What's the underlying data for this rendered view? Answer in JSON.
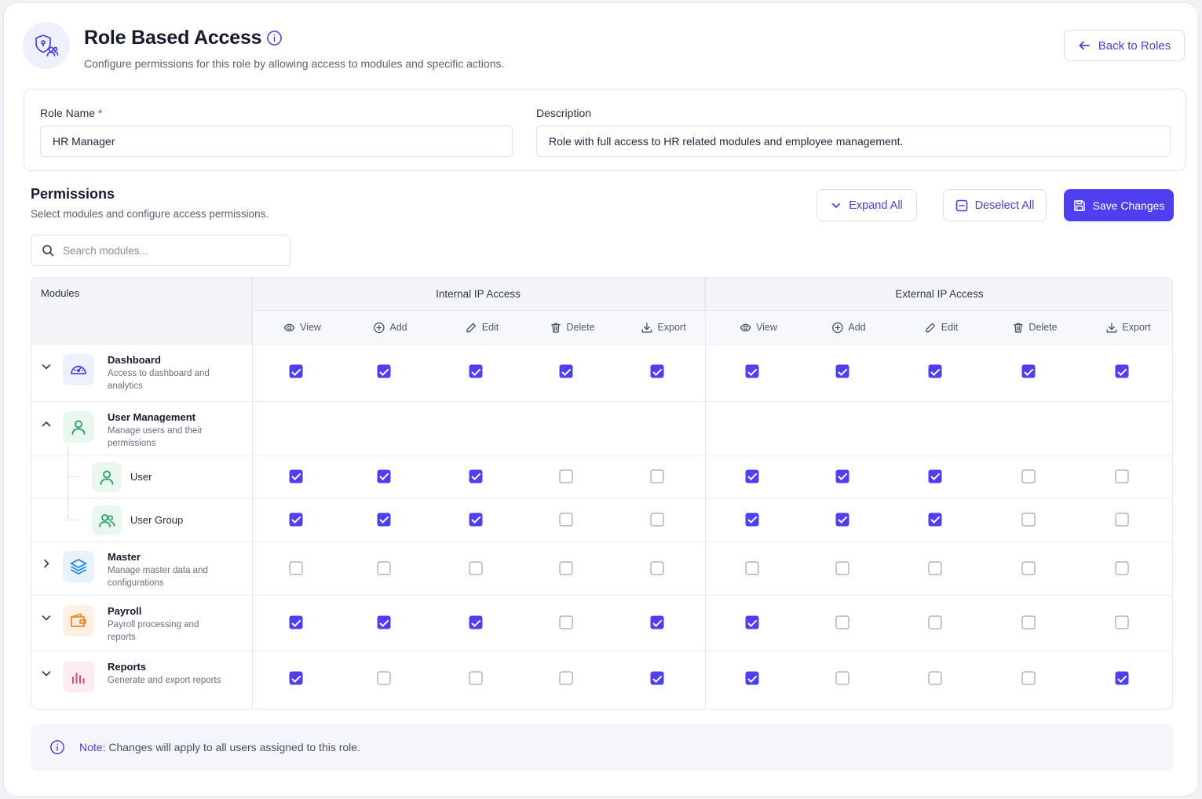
{
  "header": {
    "title": "Role Based Access",
    "subtitle": "Configure permissions for this role by allowing access to modules and specific actions.",
    "back_label": "Back to Roles"
  },
  "form": {
    "role_name_label": "Role Name",
    "role_name_required": "*",
    "role_name_value": "HR Manager",
    "description_label": "Description",
    "description_value": "Role with full access to HR related modules and employee management."
  },
  "permissions": {
    "title": "Permissions",
    "subtitle": "Select modules and configure access permissions.",
    "expand_all_label": "Expand All",
    "deselect_all_label": "Deselect All",
    "save_label": "Save Changes",
    "search_placeholder": "Search modules..."
  },
  "table": {
    "modules_header": "Modules",
    "groups": [
      "Internal IP Access",
      "External IP Access"
    ],
    "actions": [
      "View",
      "Add",
      "Edit",
      "Delete",
      "Export"
    ],
    "action_icons": [
      "eye-icon",
      "plus-circle-icon",
      "pencil-icon",
      "trash-icon",
      "download-icon"
    ],
    "rows": [
      {
        "type": "module",
        "name": "Dashboard",
        "desc": "Access to dashboard and analytics",
        "icon": "dashboard-gauge-icon",
        "expand": "collapsed",
        "color": "#4f46e5",
        "internal": [
          true,
          true,
          true,
          true,
          true
        ],
        "external": [
          true,
          true,
          true,
          true,
          true
        ]
      },
      {
        "type": "module",
        "name": "User Management",
        "desc": "Manage users and their permissions",
        "icon": "user-icon",
        "expand": "expanded",
        "color": "#22a06b"
      },
      {
        "type": "sub",
        "name": "User",
        "icon": "user-icon",
        "color": "#22a06b",
        "internal": [
          true,
          true,
          true,
          false,
          false
        ],
        "external": [
          true,
          true,
          true,
          false,
          false
        ]
      },
      {
        "type": "sub",
        "name": "User Group",
        "icon": "users-icon",
        "color": "#22a06b",
        "internal": [
          true,
          true,
          true,
          false,
          false
        ],
        "external": [
          true,
          true,
          true,
          false,
          false
        ]
      },
      {
        "type": "module",
        "name": "Master",
        "desc": "Manage master data and configurations",
        "icon": "layers-icon",
        "expand": "collapsed-right",
        "color": "#1e88e5",
        "internal": [
          false,
          false,
          false,
          false,
          false
        ],
        "external": [
          false,
          false,
          false,
          false,
          false
        ]
      },
      {
        "type": "module",
        "name": "Payroll",
        "desc": "Payroll processing and reports",
        "icon": "wallet-icon",
        "expand": "collapsed",
        "color": "#f08a24",
        "internal": [
          true,
          true,
          true,
          false,
          true
        ],
        "external": [
          true,
          false,
          false,
          false,
          false
        ]
      },
      {
        "type": "module",
        "name": "Reports",
        "desc": "Generate and export reports",
        "icon": "bar-chart-icon",
        "expand": "collapsed",
        "color": "#e0457b",
        "internal": [
          true,
          false,
          false,
          false,
          true
        ],
        "external": [
          true,
          false,
          false,
          false,
          true
        ]
      }
    ]
  },
  "note": {
    "label": "Note:",
    "text": "Changes will apply to all users assigned to this role."
  },
  "colors": {
    "accent": "#4f3ff0",
    "border": "#e3e5ee"
  }
}
